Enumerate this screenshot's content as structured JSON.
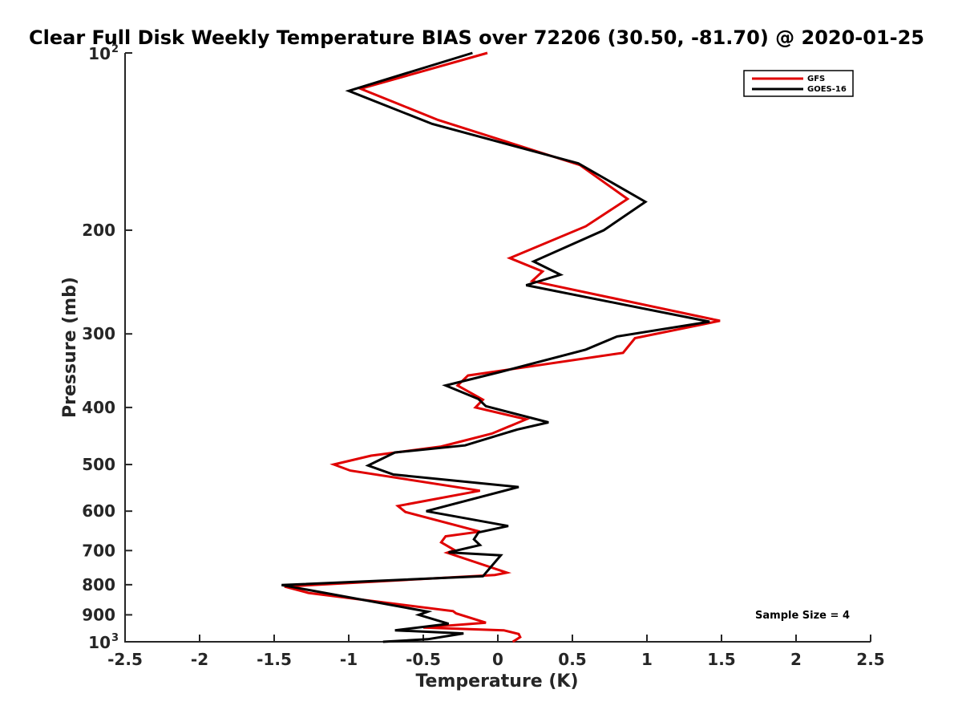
{
  "chart_data": {
    "type": "line",
    "title": "Clear Full Disk Weekly Temperature BIAS over 72206 (30.50, -81.70) @ 2020-01-25",
    "xlabel": "Temperature (K)",
    "ylabel": "Pressure (mb)",
    "xlim": [
      -2.5,
      2.5
    ],
    "ylim": [
      100,
      1000
    ],
    "y_scale": "log",
    "y_reversed": true,
    "x_ticks": [
      -2.5,
      -2,
      -1.5,
      -1,
      -0.5,
      0,
      0.5,
      1,
      1.5,
      2,
      2.5
    ],
    "x_tick_labels": [
      "-2.5",
      "-2",
      "-1.5",
      "-1",
      "-0.5",
      "0",
      "0.5",
      "1",
      "1.5",
      "2",
      "2.5"
    ],
    "y_ticks": [
      {
        "value": 100,
        "base": "10",
        "exp": "2"
      },
      {
        "value": 200,
        "label": "200"
      },
      {
        "value": 300,
        "label": "300"
      },
      {
        "value": 400,
        "label": "400"
      },
      {
        "value": 500,
        "label": "500"
      },
      {
        "value": 600,
        "label": "600"
      },
      {
        "value": 700,
        "label": "700"
      },
      {
        "value": 800,
        "label": "800"
      },
      {
        "value": 900,
        "label": "900"
      },
      {
        "value": 1000,
        "base": "10",
        "exp": "3"
      }
    ],
    "grid": false,
    "legend_position": "top-right",
    "annotation": "Sample Size = 4",
    "series": [
      {
        "name": "GFS",
        "color": "#e00000",
        "points": [
          [
            -0.07,
            100
          ],
          [
            -0.92,
            115
          ],
          [
            -0.4,
            130
          ],
          [
            0.55,
            155
          ],
          [
            0.87,
            177
          ],
          [
            0.59,
            197
          ],
          [
            0.08,
            223
          ],
          [
            0.3,
            235
          ],
          [
            0.23,
            244
          ],
          [
            1.49,
            285
          ],
          [
            0.92,
            305
          ],
          [
            0.84,
            323
          ],
          [
            -0.2,
            353
          ],
          [
            -0.27,
            367
          ],
          [
            -0.1,
            388
          ],
          [
            -0.15,
            400
          ],
          [
            0.19,
            419
          ],
          [
            -0.04,
            443
          ],
          [
            -0.38,
            466
          ],
          [
            -0.85,
            483
          ],
          [
            -1.1,
            500
          ],
          [
            -0.99,
            512
          ],
          [
            -0.12,
            554
          ],
          [
            -0.67,
            588
          ],
          [
            -0.62,
            602
          ],
          [
            -0.12,
            650
          ],
          [
            -0.35,
            662
          ],
          [
            -0.38,
            678
          ],
          [
            -0.29,
            699
          ],
          [
            -0.34,
            706
          ],
          [
            0.06,
            763
          ],
          [
            -0.02,
            770
          ],
          [
            -1.43,
            806
          ],
          [
            -1.27,
            826
          ],
          [
            -0.3,
            887
          ],
          [
            -0.28,
            895
          ],
          [
            -0.08,
            928
          ],
          [
            -0.5,
            946
          ],
          [
            0.04,
            956
          ],
          [
            0.14,
            970
          ],
          [
            0.15,
            982
          ],
          [
            0.1,
            1000
          ]
        ]
      },
      {
        "name": "GOES-16",
        "color": "#000000",
        "points": [
          [
            -0.17,
            100
          ],
          [
            -1.0,
            116
          ],
          [
            -0.44,
            132
          ],
          [
            0.54,
            154
          ],
          [
            0.99,
            179
          ],
          [
            0.71,
            200
          ],
          [
            0.24,
            226
          ],
          [
            0.42,
            238
          ],
          [
            0.19,
            248
          ],
          [
            1.42,
            286
          ],
          [
            0.8,
            303
          ],
          [
            0.59,
            319
          ],
          [
            0.02,
            348
          ],
          [
            -0.35,
            367
          ],
          [
            -0.13,
            387
          ],
          [
            -0.08,
            398
          ],
          [
            0.34,
            424
          ],
          [
            0.13,
            436
          ],
          [
            -0.22,
            464
          ],
          [
            -0.69,
            477
          ],
          [
            -0.87,
            502
          ],
          [
            -0.7,
            520
          ],
          [
            0.14,
            546
          ],
          [
            -0.48,
            600
          ],
          [
            0.07,
            636
          ],
          [
            -0.13,
            652
          ],
          [
            -0.16,
            670
          ],
          [
            -0.12,
            685
          ],
          [
            -0.33,
            705
          ],
          [
            0.02,
            713
          ],
          [
            -0.1,
            774
          ],
          [
            -1.45,
            801
          ],
          [
            -1.24,
            819
          ],
          [
            -0.47,
            889
          ],
          [
            -0.53,
            900
          ],
          [
            -0.33,
            932
          ],
          [
            -0.69,
            956
          ],
          [
            -0.23,
            968
          ],
          [
            -0.47,
            990
          ],
          [
            -0.77,
            1000
          ]
        ]
      }
    ]
  }
}
